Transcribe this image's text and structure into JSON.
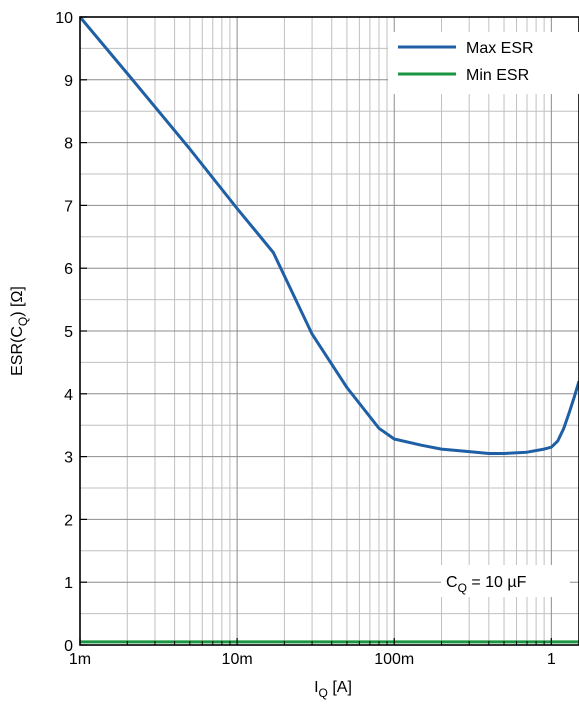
{
  "chart_data": {
    "type": "line",
    "xlabel": "I",
    "xlabel_sub": "Q",
    "xlabel_unit": " [A]",
    "ylabel": "ESR(C",
    "ylabel_sub": "Q",
    "ylabel_unit": ") [Ω]",
    "x_scale": "log",
    "xlim": [
      0.001,
      1.5
    ],
    "ylim": [
      0,
      10
    ],
    "grid": true,
    "legend_position": "top-right",
    "x_ticks": [
      {
        "value": 0.001,
        "label": "1m"
      },
      {
        "value": 0.01,
        "label": "10m"
      },
      {
        "value": 0.1,
        "label": "100m"
      },
      {
        "value": 1,
        "label": "1"
      }
    ],
    "y_ticks": [
      0,
      1,
      2,
      3,
      4,
      5,
      6,
      7,
      8,
      9,
      10
    ],
    "annotation": {
      "prefix": "C",
      "sub": "Q",
      "suffix": " = 10 µF"
    },
    "series": [
      {
        "name": "Max ESR",
        "color": "#1f5fa6",
        "x": [
          0.001,
          0.002,
          0.005,
          0.01,
          0.017,
          0.03,
          0.05,
          0.08,
          0.1,
          0.15,
          0.2,
          0.3,
          0.4,
          0.5,
          0.7,
          0.9,
          1.0,
          1.1,
          1.2,
          1.3,
          1.4,
          1.5
        ],
        "y": [
          10.0,
          9.1,
          7.9,
          6.95,
          6.25,
          4.95,
          4.1,
          3.45,
          3.28,
          3.18,
          3.12,
          3.08,
          3.05,
          3.05,
          3.07,
          3.12,
          3.15,
          3.25,
          3.45,
          3.7,
          3.95,
          4.2
        ]
      },
      {
        "name": "Min ESR",
        "color": "#1a9641",
        "x": [
          0.001,
          1.5
        ],
        "y": [
          0.05,
          0.05
        ]
      }
    ]
  }
}
